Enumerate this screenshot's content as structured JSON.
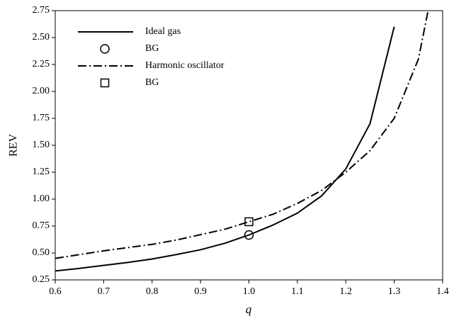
{
  "chart_data": {
    "type": "line",
    "x_label": "q",
    "y_label": "REV",
    "xlim": [
      0.6,
      1.4
    ],
    "xticks": [
      0.6,
      0.7,
      0.8,
      0.9,
      {
        "value": 1,
        "label": "1.0"
      },
      1.1,
      1.2,
      1.3,
      1.4
    ],
    "ylim": [
      0.25,
      2.75
    ],
    "yticks": [
      0.25,
      {
        "value": 0.5,
        "label": "0.50"
      },
      0.75,
      {
        "value": 1,
        "label": "1.00"
      },
      1.25,
      {
        "value": 1.5,
        "label": "1.50"
      },
      1.75,
      {
        "value": 2,
        "label": "2.00"
      },
      2.25,
      {
        "value": 2.5,
        "label": "2.50"
      },
      2.75
    ],
    "legend": "upper left",
    "series": [
      {
        "name": "Ideal gas",
        "style": "solid",
        "color": "#000000",
        "x": [
          0.6,
          0.65,
          0.7,
          0.75,
          0.8,
          0.85,
          0.9,
          0.95,
          1.0,
          1.05,
          1.1,
          1.15,
          1.2,
          1.25,
          1.3
        ],
        "values": [
          0.333,
          0.357,
          0.385,
          0.412,
          0.444,
          0.485,
          0.53,
          0.59,
          0.667,
          0.76,
          0.87,
          1.03,
          1.28,
          1.7,
          2.6
        ]
      },
      {
        "name": "BG",
        "style": "circle",
        "color": "#000000",
        "x": [
          1.0
        ],
        "values": [
          0.667
        ]
      },
      {
        "name": "Harmonic oscillator",
        "style": "dashdot",
        "color": "#000000",
        "x": [
          0.6,
          0.65,
          0.7,
          0.75,
          0.8,
          0.85,
          0.9,
          0.95,
          1.0,
          1.05,
          1.1,
          1.15,
          1.2,
          1.25,
          1.3,
          1.35,
          1.37
        ],
        "values": [
          0.45,
          0.485,
          0.52,
          0.55,
          0.58,
          0.62,
          0.67,
          0.72,
          0.79,
          0.86,
          0.96,
          1.08,
          1.25,
          1.45,
          1.75,
          2.3,
          2.75
        ]
      },
      {
        "name": "BG",
        "style": "square",
        "color": "#000000",
        "x": [
          1.0
        ],
        "values": [
          0.79
        ]
      }
    ]
  }
}
